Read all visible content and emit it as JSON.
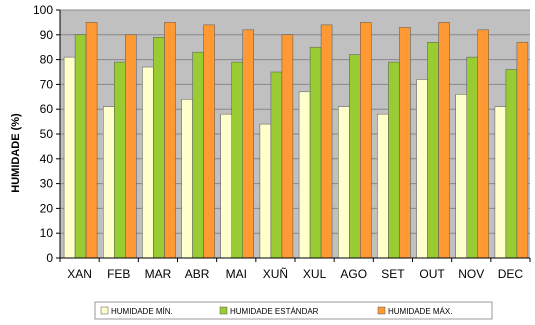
{
  "chart_data": {
    "type": "bar",
    "ylabel": "HUMIDADE (%)",
    "xlabel": "",
    "ylim": [
      0,
      100
    ],
    "yticks": [
      0,
      10,
      20,
      30,
      40,
      50,
      60,
      70,
      80,
      90,
      100
    ],
    "grid": true,
    "legend_position": "bottom",
    "categories": [
      "XAN",
      "FEB",
      "MAR",
      "ABR",
      "MAI",
      "XUÑ",
      "XUL",
      "AGO",
      "SET",
      "OUT",
      "NOV",
      "DEC"
    ],
    "series": [
      {
        "name": "HUMIDADE MÍN.",
        "color": "#FFFFCC",
        "values": [
          81,
          61,
          77,
          64,
          58,
          54,
          67,
          61,
          58,
          72,
          66,
          61
        ]
      },
      {
        "name": "HUMIDADE ESTÁNDAR",
        "color": "#99CC33",
        "values": [
          90,
          79,
          89,
          83,
          79,
          75,
          85,
          82,
          79,
          87,
          81,
          76
        ]
      },
      {
        "name": "HUMIDADE MÁX.",
        "color": "#FF9933",
        "values": [
          95,
          90,
          95,
          94,
          92,
          90,
          94,
          95,
          93,
          95,
          92,
          87
        ]
      }
    ],
    "plot_background": "#C0C0C0",
    "grid_color": "#888888"
  }
}
